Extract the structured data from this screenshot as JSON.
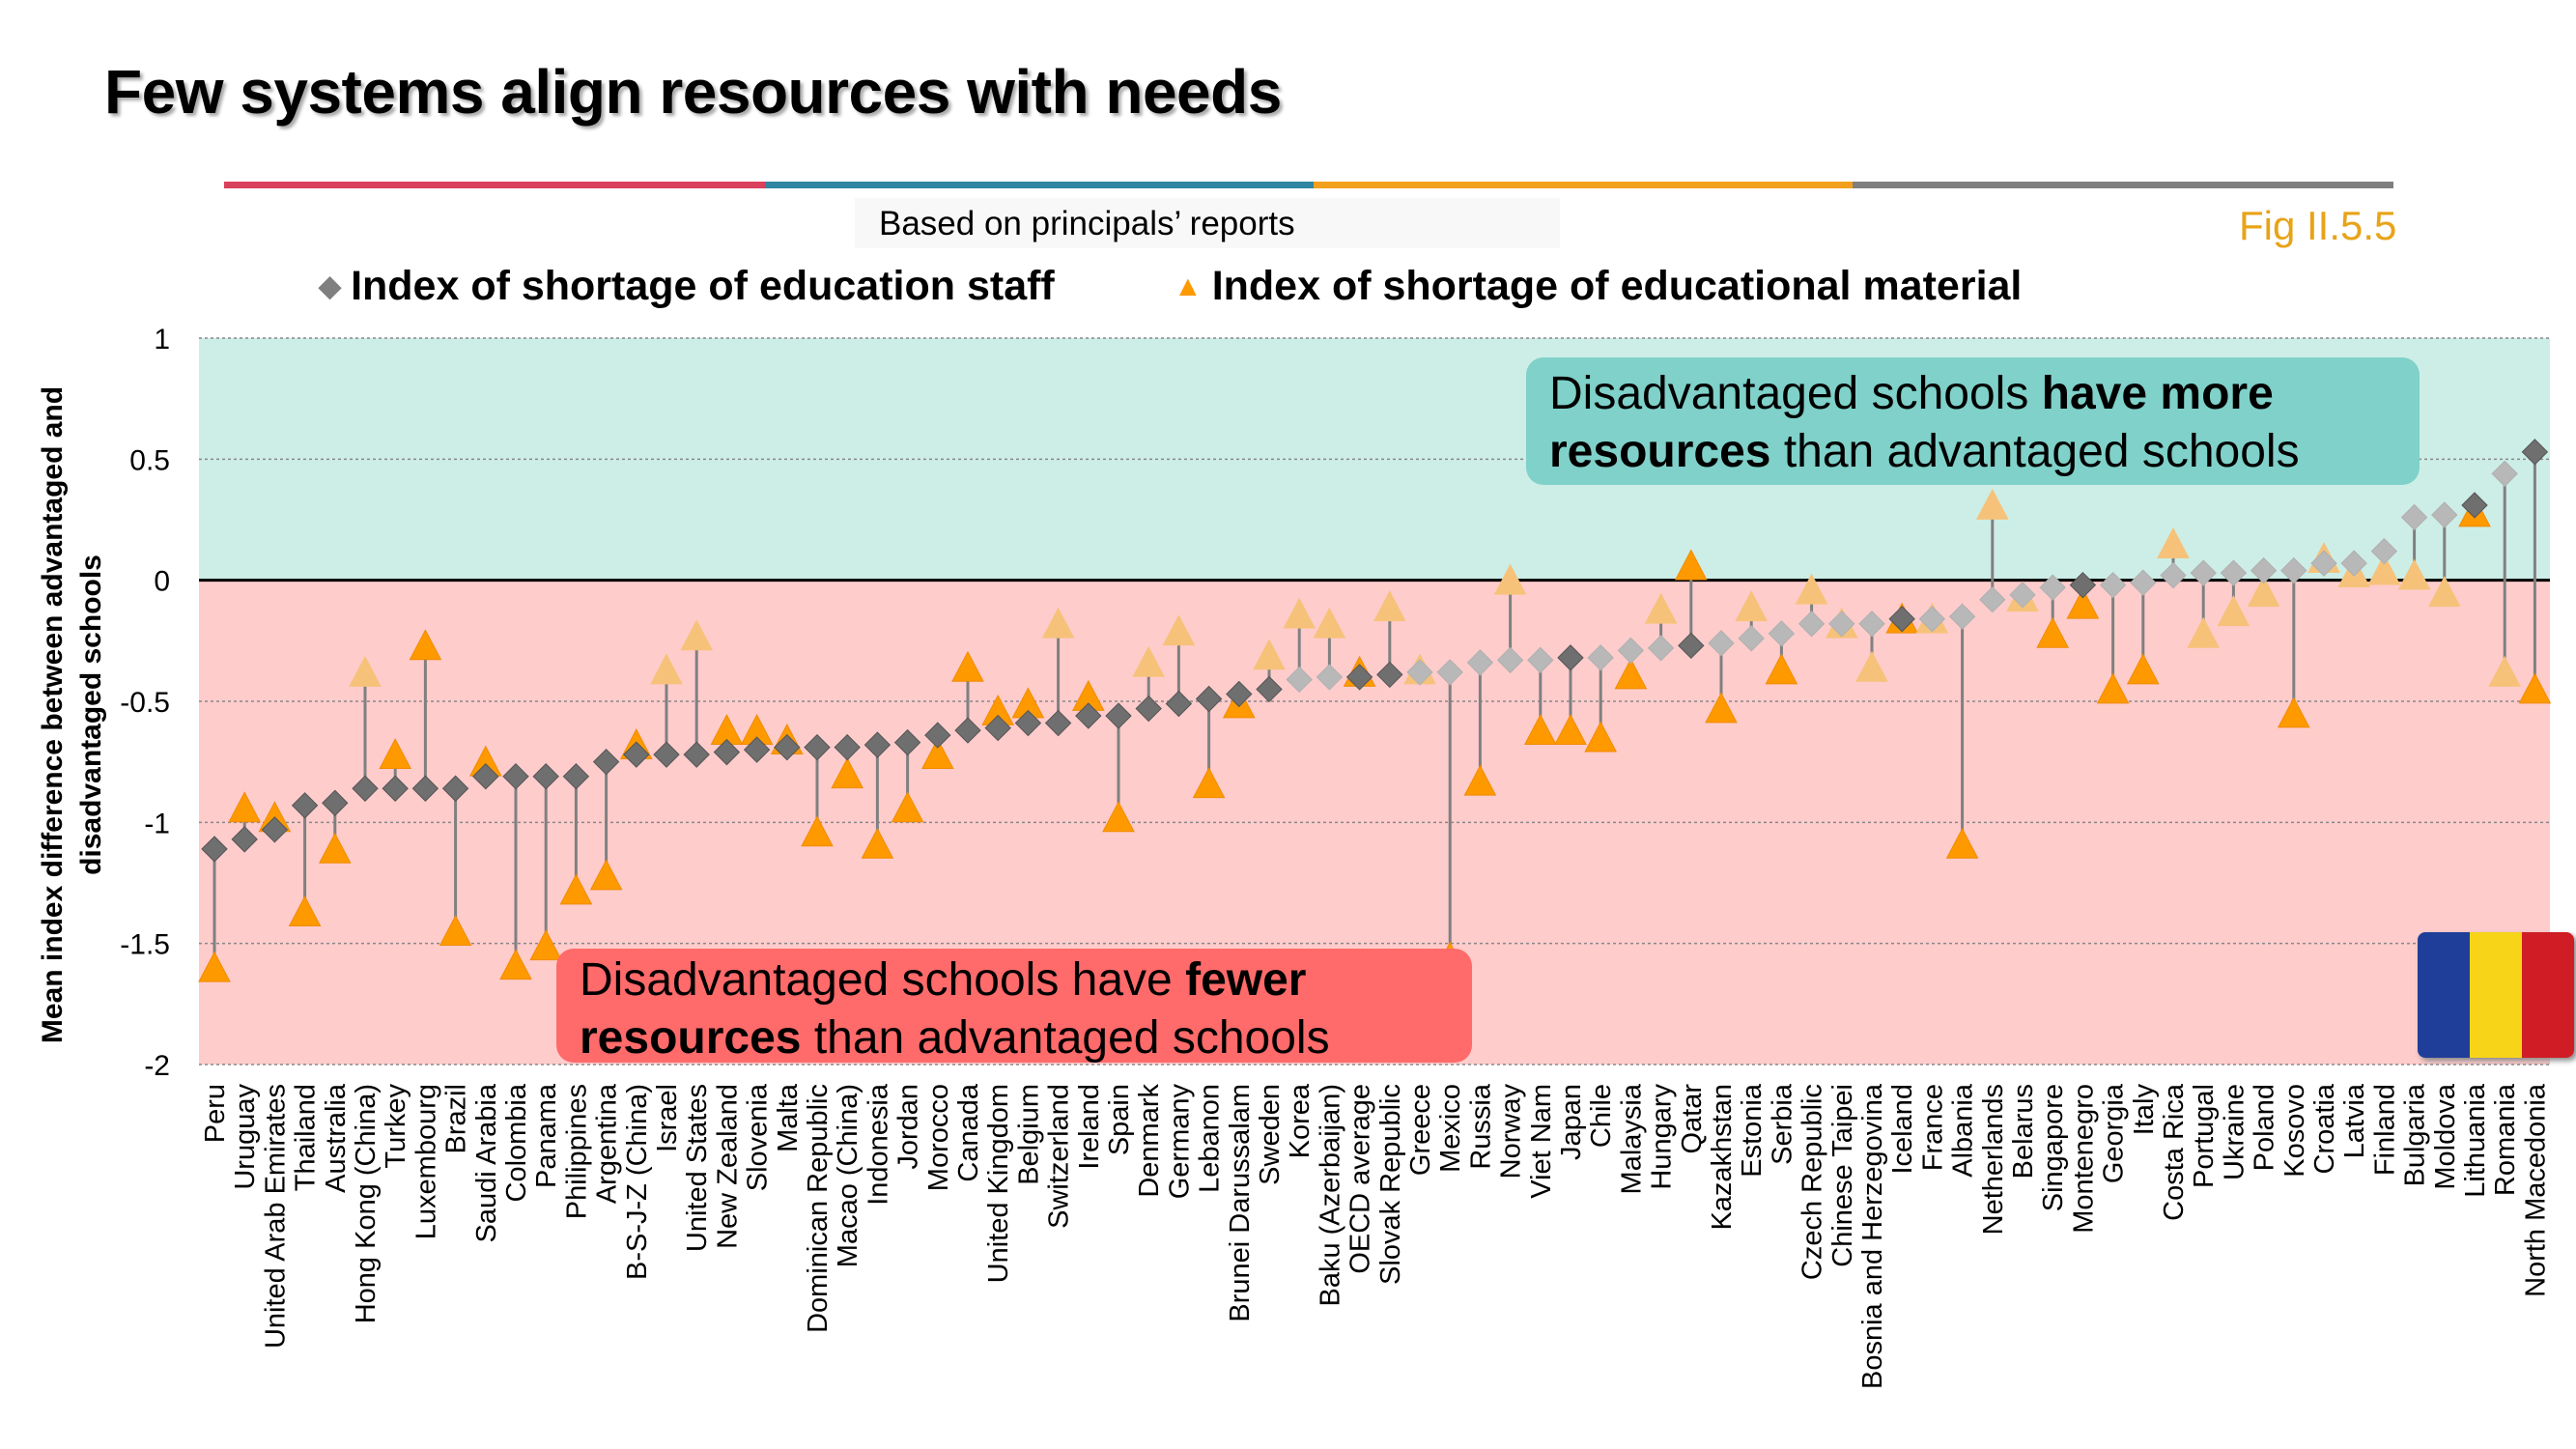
{
  "title": "Few systems align resources with needs",
  "subtitle": "Based on principals’ reports",
  "fig_ref": "Fig II.5.5",
  "colors": {
    "stripe": [
      "#d9415c",
      "#2e86a3",
      "#f2a01b",
      "#7f7f7f"
    ],
    "staff": "#7f7f7f",
    "material": "#ff9900",
    "positive_band": "#cdeee6",
    "negative_band": "#ffcccc",
    "callout_positive": "#7fd1c9",
    "callout_negative": "#ff6a6a"
  },
  "legend": {
    "staff": "Index of shortage of education staff",
    "material": "Index of shortage of educational material"
  },
  "callout_top": {
    "text_a": "Disadvantaged schools ",
    "bold_a": "have more",
    "bold_b": "resources",
    "text_b": " than advantaged schools"
  },
  "callout_bottom": {
    "text_a": "Disadvantaged schools have ",
    "bold_a": "fewer",
    "bold_b": "resources",
    "text_b": " than advantaged schools"
  },
  "flag_colors": [
    "#1f3e99",
    "#f7d417",
    "#d01c24"
  ],
  "chart_data": {
    "type": "scatter",
    "ylabel": "Mean index difference between advantaged and disadvantaged schools",
    "ylim": [
      -2,
      1
    ],
    "yticks": [
      1,
      0.5,
      0,
      -0.5,
      -1,
      -1.5,
      -2
    ],
    "ytick_labels": [
      "1",
      "0.5",
      "0",
      "-0.5",
      "-1",
      "-1.5",
      "-2"
    ],
    "grid": true,
    "legend_position": "top",
    "categories": [
      "Peru",
      "Uruguay",
      "United Arab Emirates",
      "Thailand",
      "Australia",
      "Hong Kong (China)",
      "Turkey",
      "Luxembourg",
      "Brazil",
      "Saudi Arabia",
      "Colombia",
      "Panama",
      "Philippines",
      "Argentina",
      "B-S-J-Z (China)",
      "Israel",
      "United States",
      "New Zealand",
      "Slovenia",
      "Malta",
      "Dominican Republic",
      "Macao (China)",
      "Indonesia",
      "Jordan",
      "Morocco",
      "Canada",
      "United Kingdom",
      "Belgium",
      "Switzerland",
      "Ireland",
      "Spain",
      "Denmark",
      "Germany",
      "Lebanon",
      "Brunei Darussalam",
      "Sweden",
      "Korea",
      "Baku (Azerbaijan)",
      "OECD average",
      "Slovak Republic",
      "Greece",
      "Mexico",
      "Russia",
      "Norway",
      "Viet Nam",
      "Japan",
      "Chile",
      "Malaysia",
      "Hungary",
      "Qatar",
      "Kazakhstan",
      "Estonia",
      "Serbia",
      "Czech Republic",
      "Chinese Taipei",
      "Bosnia and Herzegovina",
      "Iceland",
      "France",
      "Albania",
      "Netherlands",
      "Belarus",
      "Singapore",
      "Montenegro",
      "Georgia",
      "Italy",
      "Costa Rica",
      "Portugal",
      "Ukraine",
      "Poland",
      "Kosovo",
      "Croatia",
      "Latvia",
      "Finland",
      "Bulgaria",
      "Moldova",
      "Lithuania",
      "Romania",
      "North Macedonia"
    ],
    "series": [
      {
        "name": "Index of shortage of education staff",
        "marker": "diamond",
        "values": [
          -1.11,
          -1.07,
          -1.03,
          -0.93,
          -0.92,
          -0.86,
          -0.86,
          -0.86,
          -0.86,
          -0.81,
          -0.81,
          -0.81,
          -0.81,
          -0.75,
          -0.72,
          -0.72,
          -0.72,
          -0.71,
          -0.7,
          -0.69,
          -0.69,
          -0.69,
          -0.68,
          -0.67,
          -0.64,
          -0.62,
          -0.61,
          -0.59,
          -0.59,
          -0.56,
          -0.56,
          -0.53,
          -0.51,
          -0.49,
          -0.47,
          -0.45,
          -0.41,
          -0.4,
          -0.4,
          -0.39,
          -0.38,
          -0.38,
          -0.34,
          -0.33,
          -0.33,
          -0.32,
          -0.32,
          -0.29,
          -0.28,
          -0.27,
          -0.26,
          -0.24,
          -0.22,
          -0.18,
          -0.18,
          -0.18,
          -0.16,
          -0.16,
          -0.15,
          -0.08,
          -0.06,
          -0.03,
          -0.02,
          -0.02,
          -0.01,
          0.02,
          0.03,
          0.03,
          0.04,
          0.04,
          0.07,
          0.07,
          0.12,
          0.26,
          0.27,
          0.31,
          0.44,
          0.53
        ],
        "faded": [
          false,
          false,
          false,
          false,
          false,
          false,
          false,
          false,
          false,
          false,
          false,
          false,
          false,
          false,
          false,
          false,
          false,
          false,
          false,
          false,
          false,
          false,
          false,
          false,
          false,
          false,
          false,
          false,
          false,
          false,
          false,
          false,
          false,
          false,
          false,
          false,
          true,
          true,
          false,
          false,
          true,
          true,
          true,
          true,
          true,
          false,
          true,
          true,
          true,
          false,
          true,
          true,
          true,
          true,
          true,
          true,
          false,
          true,
          true,
          true,
          true,
          true,
          false,
          true,
          true,
          true,
          true,
          true,
          true,
          true,
          true,
          true,
          true,
          true,
          true,
          false,
          true,
          false
        ]
      },
      {
        "name": "Index of shortage of educational material",
        "marker": "triangle",
        "values": [
          -1.6,
          -0.94,
          -0.98,
          -1.37,
          -1.11,
          -0.38,
          -0.72,
          -0.27,
          -1.45,
          -0.75,
          -1.59,
          -1.51,
          -1.28,
          -1.22,
          -0.68,
          -0.37,
          -0.23,
          -0.62,
          -0.62,
          -0.66,
          -1.04,
          -0.8,
          -1.09,
          -0.94,
          -0.72,
          -0.36,
          -0.54,
          -0.51,
          -0.18,
          -0.48,
          -0.98,
          -0.34,
          -0.21,
          -0.84,
          -0.51,
          -0.31,
          -0.14,
          -0.18,
          -0.38,
          -0.11,
          -0.37,
          -1.56,
          -0.83,
          0.0,
          -0.62,
          -0.62,
          -0.65,
          -0.39,
          -0.12,
          0.06,
          -0.53,
          -0.11,
          -0.37,
          -0.04,
          -0.18,
          -0.36,
          -0.16,
          -0.16,
          -1.09,
          0.31,
          -0.07,
          -0.22,
          -0.1,
          -0.45,
          -0.37,
          0.15,
          -0.22,
          -0.13,
          -0.05,
          -0.55,
          0.09,
          0.03,
          0.04,
          0.02,
          -0.05,
          0.28,
          -0.38,
          -0.45
        ],
        "faded": [
          false,
          false,
          false,
          false,
          false,
          true,
          false,
          false,
          false,
          false,
          false,
          false,
          false,
          false,
          false,
          true,
          true,
          false,
          false,
          false,
          false,
          false,
          false,
          false,
          false,
          false,
          false,
          false,
          true,
          false,
          false,
          true,
          true,
          false,
          false,
          true,
          true,
          true,
          false,
          true,
          true,
          false,
          false,
          true,
          false,
          false,
          false,
          false,
          true,
          false,
          false,
          true,
          false,
          true,
          true,
          true,
          false,
          true,
          false,
          true,
          true,
          false,
          false,
          false,
          false,
          true,
          true,
          true,
          true,
          false,
          true,
          true,
          true,
          true,
          true,
          false,
          true,
          false
        ]
      }
    ]
  }
}
